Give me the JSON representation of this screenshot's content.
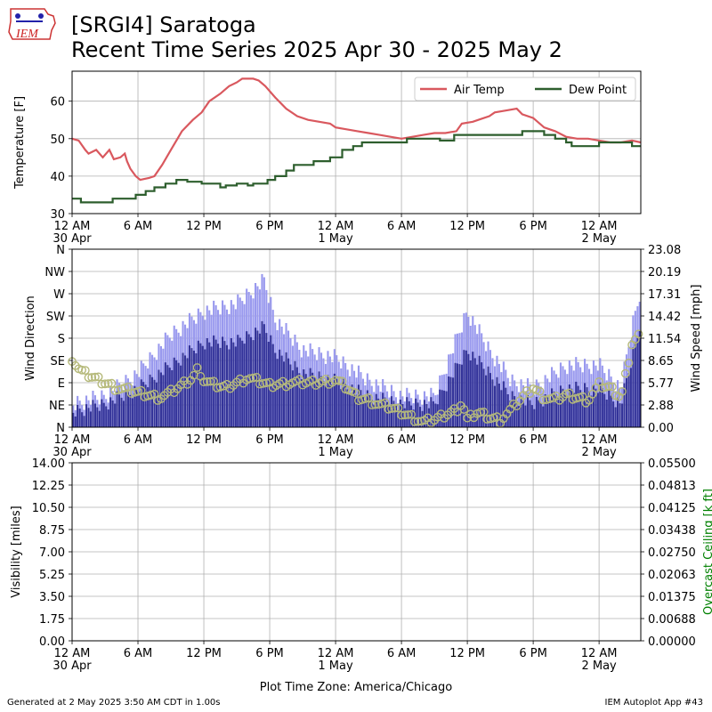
{
  "header": {
    "title_line1": "[SRGI4] Saratoga",
    "title_line2": "Recent Time Series 2025 Apr 30 - 2025 May 2",
    "logo_text": "IEM"
  },
  "footer": {
    "generated": "Generated at 2 May 2025 3:50 AM CDT in 1.00s",
    "app": "IEM Autoplot App #43"
  },
  "colors": {
    "air_temp": "#d9585e",
    "dew_point": "#2d5e2d",
    "wind_gust": "#9999ee",
    "wind_speed": "#333399",
    "wind_dir": "#b5b97a",
    "grid": "#b0b0b0",
    "ceiling_label": "#008000"
  },
  "chart_data": [
    {
      "type": "line",
      "ylabel": "Temperature [F]",
      "xlabel": "",
      "x_ticks": [
        "12 AM",
        "6 AM",
        "12 PM",
        "6 PM",
        "12 AM",
        "6 AM",
        "12 PM",
        "6 PM",
        "12 AM"
      ],
      "x_date_labels": [
        "30 Apr",
        "",
        "",
        "",
        "1 May",
        "",
        "",
        "",
        "2 May"
      ],
      "xlim_hours": [
        0,
        51.8
      ],
      "ylim": [
        30,
        68
      ],
      "y_ticks": [
        30,
        40,
        50,
        60
      ],
      "grid": true,
      "legend_position": "top-right",
      "series": [
        {
          "name": "Air Temp",
          "color_key": "air_temp",
          "points": [
            [
              0,
              50
            ],
            [
              0.6,
              49.5
            ],
            [
              1.2,
              47
            ],
            [
              1.5,
              46
            ],
            [
              2.2,
              47
            ],
            [
              2.8,
              45
            ],
            [
              3.4,
              47
            ],
            [
              3.8,
              44.5
            ],
            [
              4.4,
              45
            ],
            [
              4.8,
              46
            ],
            [
              5.0,
              44
            ],
            [
              5.3,
              42
            ],
            [
              5.8,
              40
            ],
            [
              6.2,
              39
            ],
            [
              7,
              39.5
            ],
            [
              7.5,
              40
            ],
            [
              8.2,
              43
            ],
            [
              9,
              47
            ],
            [
              10,
              52
            ],
            [
              11,
              55
            ],
            [
              11.8,
              57
            ],
            [
              12.5,
              60
            ],
            [
              13.5,
              62
            ],
            [
              14.3,
              64
            ],
            [
              15,
              65
            ],
            [
              15.5,
              66
            ],
            [
              16.5,
              66
            ],
            [
              17,
              65.5
            ],
            [
              17.6,
              64
            ],
            [
              18.5,
              61
            ],
            [
              19.5,
              58
            ],
            [
              20.5,
              56
            ],
            [
              21.5,
              55
            ],
            [
              22.5,
              54.5
            ],
            [
              23.5,
              54
            ],
            [
              24,
              53
            ],
            [
              25,
              52.5
            ],
            [
              26,
              52
            ],
            [
              27,
              51.5
            ],
            [
              28,
              51
            ],
            [
              29,
              50.5
            ],
            [
              30,
              50
            ],
            [
              31,
              50.5
            ],
            [
              32,
              51
            ],
            [
              33,
              51.5
            ],
            [
              34,
              51.5
            ],
            [
              35,
              52
            ],
            [
              35.5,
              54
            ],
            [
              36.5,
              54.5
            ],
            [
              37,
              55
            ],
            [
              38,
              56
            ],
            [
              38.5,
              57
            ],
            [
              39.5,
              57.5
            ],
            [
              40.5,
              58
            ],
            [
              41,
              56.5
            ],
            [
              42,
              55.5
            ],
            [
              43,
              53
            ],
            [
              44,
              52
            ],
            [
              45,
              50.5
            ],
            [
              46,
              50
            ],
            [
              47,
              50
            ],
            [
              48,
              49.5
            ],
            [
              49,
              49
            ],
            [
              50,
              49
            ],
            [
              51,
              49.5
            ],
            [
              51.8,
              49
            ]
          ]
        },
        {
          "name": "Dew Point",
          "color_key": "dew_point",
          "points": [
            [
              0,
              34
            ],
            [
              0.8,
              34
            ],
            [
              0.8,
              33
            ],
            [
              3.7,
              33
            ],
            [
              3.7,
              34
            ],
            [
              5.8,
              34
            ],
            [
              5.8,
              35
            ],
            [
              6.7,
              35
            ],
            [
              6.7,
              36
            ],
            [
              7.5,
              36
            ],
            [
              7.5,
              37
            ],
            [
              8.5,
              37
            ],
            [
              8.5,
              38
            ],
            [
              9.5,
              38
            ],
            [
              9.5,
              39
            ],
            [
              10.5,
              39
            ],
            [
              10.5,
              38.5
            ],
            [
              11.8,
              38.5
            ],
            [
              11.8,
              38
            ],
            [
              13.5,
              38
            ],
            [
              13.5,
              37
            ],
            [
              14,
              37
            ],
            [
              14,
              37.5
            ],
            [
              15,
              37.5
            ],
            [
              15,
              38
            ],
            [
              16,
              38
            ],
            [
              16,
              37.5
            ],
            [
              16.5,
              37.5
            ],
            [
              16.5,
              38
            ],
            [
              17.8,
              38
            ],
            [
              17.8,
              39
            ],
            [
              18.5,
              39
            ],
            [
              18.5,
              40
            ],
            [
              19.5,
              40
            ],
            [
              19.5,
              41.5
            ],
            [
              20.2,
              41.5
            ],
            [
              20.2,
              43
            ],
            [
              22,
              43
            ],
            [
              22,
              44
            ],
            [
              23.5,
              44
            ],
            [
              23.5,
              45
            ],
            [
              24.6,
              45
            ],
            [
              24.6,
              47
            ],
            [
              25.6,
              47
            ],
            [
              25.6,
              48
            ],
            [
              26.4,
              48
            ],
            [
              26.4,
              49
            ],
            [
              30.5,
              49
            ],
            [
              30.5,
              50
            ],
            [
              33.5,
              50
            ],
            [
              33.5,
              49.5
            ],
            [
              34.8,
              49.5
            ],
            [
              34.8,
              51
            ],
            [
              41,
              51
            ],
            [
              41,
              52
            ],
            [
              43,
              52
            ],
            [
              43,
              51
            ],
            [
              44,
              51
            ],
            [
              44,
              50
            ],
            [
              45,
              50
            ],
            [
              45,
              49
            ],
            [
              45.5,
              49
            ],
            [
              45.5,
              48
            ],
            [
              48,
              48
            ],
            [
              48,
              49
            ],
            [
              51,
              49
            ],
            [
              51,
              48
            ],
            [
              51.8,
              48
            ]
          ]
        }
      ]
    },
    {
      "type": "bar",
      "ylabel": "Wind Direction",
      "y2label": "Wind Speed [mph]",
      "x_ticks": [
        "12 AM",
        "6 AM",
        "12 PM",
        "6 PM",
        "12 AM",
        "6 AM",
        "12 PM",
        "6 PM",
        "12 AM"
      ],
      "x_date_labels": [
        "30 Apr",
        "",
        "",
        "",
        "1 May",
        "",
        "",
        "",
        "2 May"
      ],
      "direction_ticks": [
        "N",
        "NE",
        "E",
        "SE",
        "S",
        "SW",
        "W",
        "NW",
        "N"
      ],
      "ylim_direction": [
        0,
        360
      ],
      "speed_ticks": [
        "0.00",
        "2.88",
        "5.77",
        "8.65",
        "11.54",
        "14.42",
        "17.31",
        "20.19",
        "23.08"
      ],
      "ylim_speed": [
        0,
        23.08
      ],
      "grid": true,
      "series": [
        {
          "name": "",
          "kind": "gust_bars",
          "color_key": "wind_gust",
          "profile": [
            [
              0,
              3
            ],
            [
              3,
              4
            ],
            [
              6,
              7
            ],
            [
              9,
              12
            ],
            [
              12,
              15
            ],
            [
              15,
              16
            ],
            [
              17.5,
              19
            ],
            [
              18.5,
              14
            ],
            [
              21,
              10
            ],
            [
              24,
              9
            ],
            [
              27,
              6
            ],
            [
              30,
              4
            ],
            [
              33,
              4
            ],
            [
              36,
              15
            ],
            [
              38,
              10
            ],
            [
              40,
              6
            ],
            [
              42,
              5
            ],
            [
              45,
              8
            ],
            [
              48,
              8
            ],
            [
              50,
              5
            ],
            [
              51,
              13
            ],
            [
              51.8,
              18
            ]
          ]
        },
        {
          "name": "",
          "kind": "speed_bars",
          "color_key": "wind_speed",
          "profile": [
            [
              0,
              2
            ],
            [
              3,
              3
            ],
            [
              6,
              5
            ],
            [
              9,
              8
            ],
            [
              12,
              11
            ],
            [
              15,
              11
            ],
            [
              17.5,
              13
            ],
            [
              18.5,
              10
            ],
            [
              21,
              7
            ],
            [
              24,
              6
            ],
            [
              27,
              4
            ],
            [
              30,
              3
            ],
            [
              33,
              3
            ],
            [
              36,
              10
            ],
            [
              38,
              7
            ],
            [
              40,
              4
            ],
            [
              42,
              3
            ],
            [
              45,
              5
            ],
            [
              48,
              5
            ],
            [
              50,
              3
            ],
            [
              51,
              9
            ],
            [
              51.8,
              14
            ]
          ]
        },
        {
          "name": "",
          "kind": "direction_circles",
          "color_key": "wind_dir",
          "profile": [
            [
              0,
              140
            ],
            [
              0.5,
              120
            ],
            [
              1,
              110
            ],
            [
              2,
              100
            ],
            [
              3,
              90
            ],
            [
              4,
              80
            ],
            [
              5,
              75
            ],
            [
              6,
              70
            ],
            [
              7,
              65
            ],
            [
              8,
              60
            ],
            [
              9,
              70
            ],
            [
              10,
              85
            ],
            [
              11,
              100
            ],
            [
              11.5,
              120
            ],
            [
              12,
              95
            ],
            [
              13,
              85
            ],
            [
              14,
              80
            ],
            [
              16,
              100
            ],
            [
              18,
              85
            ],
            [
              20,
              90
            ],
            [
              22,
              90
            ],
            [
              24,
              95
            ],
            [
              25,
              80
            ],
            [
              26,
              60
            ],
            [
              27,
              55
            ],
            [
              28,
              45
            ],
            [
              29,
              40
            ],
            [
              30,
              30
            ],
            [
              31,
              20
            ],
            [
              32,
              10
            ],
            [
              33,
              15
            ],
            [
              34,
              25
            ],
            [
              35,
              35
            ],
            [
              35.5,
              50
            ],
            [
              36,
              15
            ],
            [
              37,
              30
            ],
            [
              38,
              20
            ],
            [
              39,
              15
            ],
            [
              40,
              35
            ],
            [
              41,
              60
            ],
            [
              42,
              80
            ],
            [
              43,
              60
            ],
            [
              44,
              55
            ],
            [
              45,
              65
            ],
            [
              46,
              60
            ],
            [
              47,
              55
            ],
            [
              48,
              85
            ],
            [
              49,
              80
            ],
            [
              50,
              60
            ],
            [
              51,
              170
            ],
            [
              51.8,
              190
            ]
          ]
        }
      ]
    },
    {
      "type": "line",
      "ylabel": "Visibility [miles]",
      "y2label": "Overcast Ceiling [k ft]",
      "xlabel": "Plot Time Zone: America/Chicago",
      "x_ticks": [
        "12 AM",
        "6 AM",
        "12 PM",
        "6 PM",
        "12 AM",
        "6 AM",
        "12 PM",
        "6 PM",
        "12 AM"
      ],
      "x_date_labels": [
        "30 Apr",
        "",
        "",
        "",
        "1 May",
        "",
        "",
        "",
        "2 May"
      ],
      "y_ticks": [
        "0.00",
        "1.75",
        "3.50",
        "5.25",
        "7.00",
        "8.75",
        "10.50",
        "12.25",
        "14.00"
      ],
      "ylim": [
        0,
        14
      ],
      "y2_ticks": [
        "0.00000",
        "0.00688",
        "0.01375",
        "0.02063",
        "0.02750",
        "0.03438",
        "0.04125",
        "0.04813",
        "0.05500"
      ],
      "y2lim": [
        0,
        0.055
      ],
      "grid": true,
      "series": []
    }
  ]
}
